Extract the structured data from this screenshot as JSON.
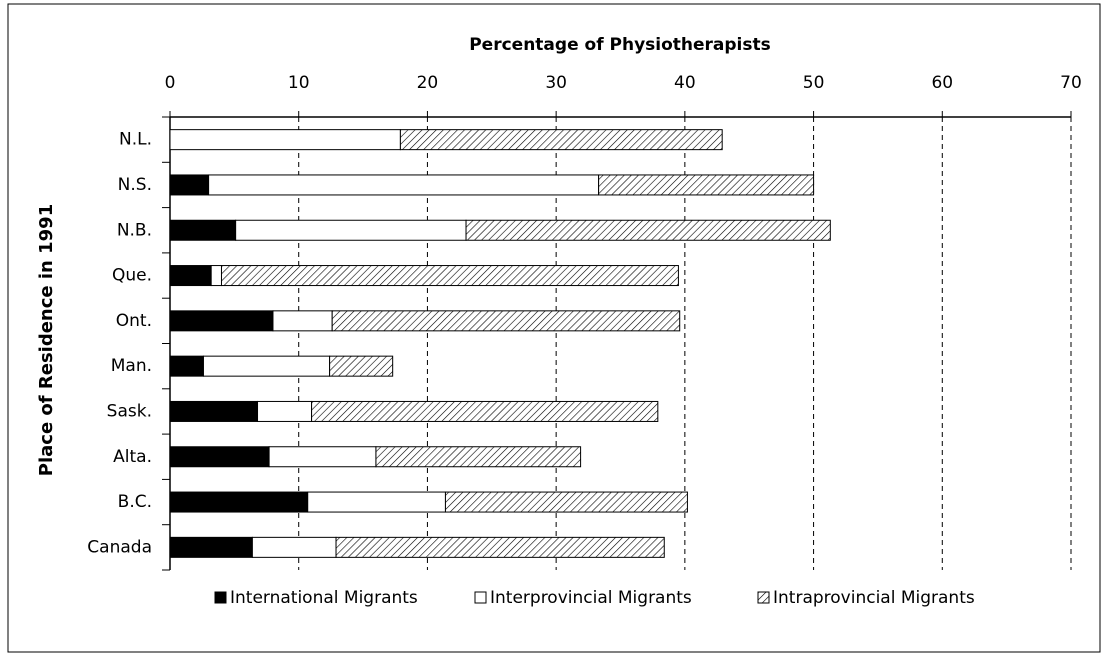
{
  "chart_data": {
    "type": "stacked-bar-horizontal",
    "x_label": "Percentage of Physiotherapists",
    "y_label": "Place of Residence in 1991",
    "categories": [
      "N.L.",
      "N.S.",
      "N.B.",
      "Que.",
      "Ont.",
      "Man.",
      "Sask.",
      "Alta.",
      "B.C.",
      "Canada"
    ],
    "series": [
      {
        "name": "International Migrants",
        "color": "#000000",
        "values": [
          0,
          3.0,
          5.1,
          3.2,
          8.0,
          2.6,
          6.8,
          7.7,
          10.7,
          6.4
        ]
      },
      {
        "name": "Interprovincial Migrants",
        "color": "#ffffff",
        "values": [
          17.9,
          30.3,
          17.9,
          0.8,
          4.6,
          9.8,
          4.2,
          8.3,
          10.7,
          6.5
        ]
      },
      {
        "name": "Intraprovincial Migrants",
        "color": "#ffffff",
        "pattern": "diagonal-hatch",
        "values": [
          25.0,
          16.7,
          28.3,
          35.5,
          27.0,
          4.9,
          26.9,
          15.9,
          18.8,
          25.5
        ]
      }
    ],
    "xlim": [
      0,
      70
    ],
    "xticks": [
      0,
      10,
      20,
      30,
      40,
      50,
      60,
      70
    ],
    "grid": true,
    "legend": "bottom"
  }
}
